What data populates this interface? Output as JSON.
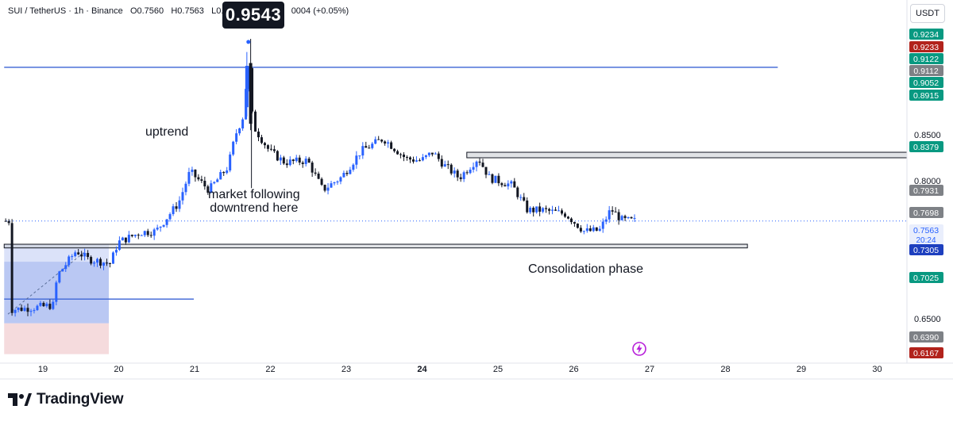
{
  "header": {
    "symbol": "SUI / TetherUS",
    "interval": "1h",
    "exchange": "Binance",
    "open": "O0.7560",
    "high": "H0.7563",
    "low": "L0.75",
    "change": "0004 (+0.05%)"
  },
  "peak_label": "0.9543",
  "currency_button": "USDT",
  "annotations": {
    "uptrend": "uptrend",
    "downtrend_line1": "market following",
    "downtrend_line2": "downtrend here",
    "consolidation": "Consolidation phase"
  },
  "brand": "TradingView",
  "colors": {
    "bull": "#2962ff",
    "bear": "#131722",
    "zone_grey": "#c8ccd2",
    "blue_zone": "#8fa6ec",
    "red_zone": "#f2d2d4",
    "axis_green": "#089981",
    "axis_red": "#b2231c",
    "axis_grey": "#7e8186",
    "axis_blue": "#1d3fbf"
  },
  "chart_data": {
    "type": "candlestick",
    "symbol": "SUI / TetherUS",
    "timeframe": "1h",
    "x_ticks": [
      "19",
      "20",
      "21",
      "22",
      "23",
      "24",
      "25",
      "26",
      "27",
      "28",
      "29",
      "30"
    ],
    "y_ticks": [
      "0.8500",
      "0.8000",
      "0.6500"
    ],
    "y_range": [
      0.6,
      0.96
    ],
    "price_tags": [
      {
        "label": "0.9234",
        "style": "green"
      },
      {
        "label": "0.9233",
        "style": "red"
      },
      {
        "label": "0.9122",
        "style": "green"
      },
      {
        "label": "0.9112",
        "style": "grey"
      },
      {
        "label": "0.9052",
        "style": "green"
      },
      {
        "label": "0.8915",
        "style": "green"
      },
      {
        "label": "0.8379",
        "style": "green"
      },
      {
        "label": "0.7931",
        "style": "grey"
      },
      {
        "label": "0.7698",
        "style": "grey"
      },
      {
        "label": "0.7563",
        "sub": "20:24",
        "style": "current"
      },
      {
        "label": "0.7305",
        "style": "blue"
      },
      {
        "label": "0.7025",
        "style": "green"
      },
      {
        "label": "0.6390",
        "style": "grey"
      },
      {
        "label": "0.6167",
        "style": "red"
      }
    ],
    "peak": {
      "day": 21.75,
      "price": 0.9543
    },
    "current_price": 0.7563,
    "closes": [
      {
        "day": 18.6,
        "close": 0.66
      },
      {
        "day": 19.0,
        "close": 0.663
      },
      {
        "day": 19.15,
        "close": 0.665
      },
      {
        "day": 19.2,
        "close": 0.697
      },
      {
        "day": 19.45,
        "close": 0.724
      },
      {
        "day": 19.6,
        "close": 0.715
      },
      {
        "day": 19.9,
        "close": 0.71
      },
      {
        "day": 20.0,
        "close": 0.733
      },
      {
        "day": 20.3,
        "close": 0.744
      },
      {
        "day": 20.5,
        "close": 0.745
      },
      {
        "day": 20.8,
        "close": 0.776
      },
      {
        "day": 20.95,
        "close": 0.81
      },
      {
        "day": 21.2,
        "close": 0.79
      },
      {
        "day": 21.45,
        "close": 0.815
      },
      {
        "day": 21.55,
        "close": 0.85
      },
      {
        "day": 21.65,
        "close": 0.87
      },
      {
        "day": 21.72,
        "close": 0.93
      },
      {
        "day": 21.78,
        "close": 0.86
      },
      {
        "day": 22.0,
        "close": 0.832
      },
      {
        "day": 22.2,
        "close": 0.82
      },
      {
        "day": 22.5,
        "close": 0.822
      },
      {
        "day": 22.7,
        "close": 0.79
      },
      {
        "day": 22.95,
        "close": 0.804
      },
      {
        "day": 23.2,
        "close": 0.832
      },
      {
        "day": 23.5,
        "close": 0.846
      },
      {
        "day": 23.8,
        "close": 0.824
      },
      {
        "day": 24.0,
        "close": 0.822
      },
      {
        "day": 24.15,
        "close": 0.831
      },
      {
        "day": 24.3,
        "close": 0.817
      },
      {
        "day": 24.5,
        "close": 0.803
      },
      {
        "day": 24.75,
        "close": 0.825
      },
      {
        "day": 24.9,
        "close": 0.803
      },
      {
        "day": 25.2,
        "close": 0.795
      },
      {
        "day": 25.4,
        "close": 0.768
      },
      {
        "day": 25.6,
        "close": 0.768
      },
      {
        "day": 25.9,
        "close": 0.764
      },
      {
        "day": 26.15,
        "close": 0.745
      },
      {
        "day": 26.35,
        "close": 0.746
      },
      {
        "day": 26.5,
        "close": 0.769
      },
      {
        "day": 26.65,
        "close": 0.757
      },
      {
        "day": 26.83,
        "close": 0.7563
      }
    ],
    "zones": [
      {
        "type": "resistance",
        "from_day": 24.6,
        "to_day": "end",
        "low": 0.825,
        "high": 0.831
      },
      {
        "type": "support",
        "from_day": 18.5,
        "to_day": 28.3,
        "low": 0.727,
        "high": 0.731
      }
    ],
    "lines": [
      {
        "type": "horizontal",
        "price": 0.9234,
        "from_day": 18.5,
        "to_day": 28.7
      },
      {
        "type": "horizontal",
        "price": 0.6713,
        "from_day": 18.5,
        "to_day": 21.0
      }
    ]
  }
}
